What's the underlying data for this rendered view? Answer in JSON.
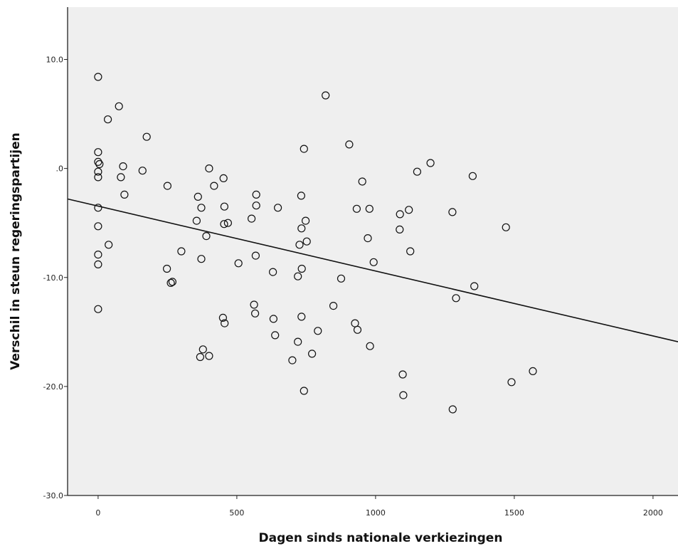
{
  "chart_data": {
    "type": "scatter",
    "title": "",
    "xlabel": "Dagen sinds nationale verkiezingen",
    "ylabel": "Verschil in steun regeringspartijen",
    "xlim": [
      -110,
      2090
    ],
    "ylim": [
      -30,
      14.8
    ],
    "x_ticks": [
      {
        "value": 0,
        "label": "0"
      },
      {
        "value": 500,
        "label": "500"
      },
      {
        "value": 1000,
        "label": "1000"
      },
      {
        "value": 1500,
        "label": "1500"
      },
      {
        "value": 2000,
        "label": "2000"
      }
    ],
    "y_ticks": [
      {
        "value": 10,
        "label": "10.0"
      },
      {
        "value": 0,
        "label": ".0"
      },
      {
        "value": -10,
        "label": "-10.0"
      },
      {
        "value": -20,
        "label": "-20.0"
      },
      {
        "value": -30,
        "label": "-30.0"
      }
    ],
    "grid": false,
    "legend": "none",
    "background": "#efefef",
    "marker": "open-circle",
    "points": [
      [
        0,
        8.4
      ],
      [
        0,
        1.5
      ],
      [
        0,
        0.6
      ],
      [
        5,
        0.4
      ],
      [
        0,
        -0.3
      ],
      [
        0,
        -0.8
      ],
      [
        0,
        -3.6
      ],
      [
        0,
        -5.3
      ],
      [
        0,
        -7.9
      ],
      [
        0,
        -8.8
      ],
      [
        0,
        -12.9
      ],
      [
        35,
        4.5
      ],
      [
        75,
        5.7
      ],
      [
        38,
        -7.0
      ],
      [
        90,
        0.2
      ],
      [
        82,
        -0.8
      ],
      [
        95,
        -2.4
      ],
      [
        160,
        -0.2
      ],
      [
        175,
        2.9
      ],
      [
        250,
        -1.6
      ],
      [
        248,
        -9.2
      ],
      [
        262,
        -10.5
      ],
      [
        268,
        -10.4
      ],
      [
        300,
        -7.6
      ],
      [
        355,
        -4.8
      ],
      [
        360,
        -2.6
      ],
      [
        372,
        -3.6
      ],
      [
        372,
        -8.3
      ],
      [
        378,
        -16.6
      ],
      [
        368,
        -17.3
      ],
      [
        400,
        -17.2
      ],
      [
        390,
        -6.2
      ],
      [
        400,
        0.0
      ],
      [
        418,
        -1.6
      ],
      [
        452,
        -0.9
      ],
      [
        455,
        -3.5
      ],
      [
        454,
        -5.1
      ],
      [
        468,
        -5.0
      ],
      [
        450,
        -13.7
      ],
      [
        456,
        -14.2
      ],
      [
        506,
        -8.7
      ],
      [
        553,
        -4.6
      ],
      [
        570,
        -2.4
      ],
      [
        570,
        -3.4
      ],
      [
        568,
        -8.0
      ],
      [
        562,
        -12.5
      ],
      [
        566,
        -13.3
      ],
      [
        630,
        -9.5
      ],
      [
        632,
        -13.8
      ],
      [
        638,
        -15.3
      ],
      [
        648,
        -3.6
      ],
      [
        700,
        -17.6
      ],
      [
        720,
        -15.9
      ],
      [
        720,
        -9.9
      ],
      [
        726,
        -7.0
      ],
      [
        732,
        -2.5
      ],
      [
        733,
        -5.5
      ],
      [
        734,
        -9.2
      ],
      [
        733,
        -13.6
      ],
      [
        742,
        -20.4
      ],
      [
        742,
        1.8
      ],
      [
        748,
        -4.8
      ],
      [
        752,
        -6.7
      ],
      [
        771,
        -17.0
      ],
      [
        792,
        -14.9
      ],
      [
        820,
        6.7
      ],
      [
        848,
        -12.6
      ],
      [
        876,
        -10.1
      ],
      [
        905,
        2.2
      ],
      [
        926,
        -14.2
      ],
      [
        932,
        -3.7
      ],
      [
        935,
        -14.8
      ],
      [
        952,
        -1.2
      ],
      [
        972,
        -6.4
      ],
      [
        978,
        -3.7
      ],
      [
        980,
        -16.3
      ],
      [
        993,
        -8.6
      ],
      [
        1088,
        -4.2
      ],
      [
        1087,
        -5.6
      ],
      [
        1098,
        -18.9
      ],
      [
        1100,
        -20.8
      ],
      [
        1120,
        -3.8
      ],
      [
        1125,
        -7.6
      ],
      [
        1150,
        -0.3
      ],
      [
        1198,
        0.5
      ],
      [
        1277,
        -4.0
      ],
      [
        1290,
        -11.9
      ],
      [
        1278,
        -22.1
      ],
      [
        1350,
        -0.7
      ],
      [
        1356,
        -10.8
      ],
      [
        1470,
        -5.4
      ],
      [
        1490,
        -19.6
      ],
      [
        1567,
        -18.6
      ]
    ],
    "regression_line": {
      "x": [
        -110,
        2090
      ],
      "y": [
        -2.8,
        -15.9
      ]
    }
  }
}
